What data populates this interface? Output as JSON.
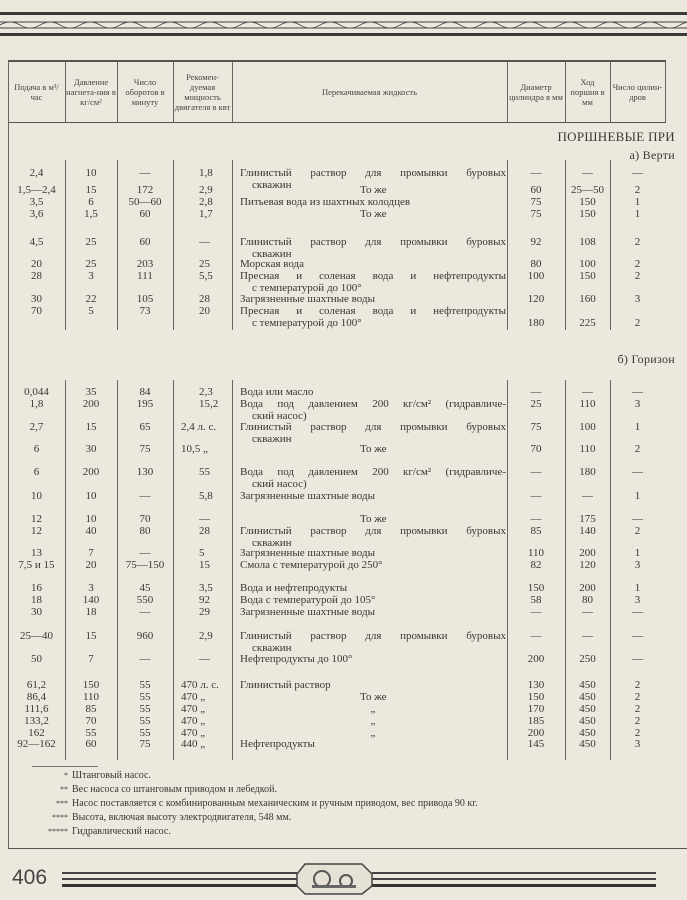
{
  "headers": [
    "Подача в м³/час",
    "Давление нагнета-ния в кг/см²",
    "Число оборотов в минуту",
    "Рекомен-дуемая мощность двигателя в квт",
    "Перекачиваемая жидкость",
    "Диаметр цилиндра в мм",
    "Ход поршня в мм",
    "Число цилин-дров"
  ],
  "section_title": "ПОРШНЕВЫЕ ПРИ",
  "subsections": [
    {
      "title": "а) Верти",
      "rows": [
        [
          "2,4",
          "10",
          "—",
          "1,8",
          [
            "Глинистый раствор для промывки буровых",
            "скважин"
          ],
          "—",
          "—",
          "—"
        ],
        [
          "1,5—2,4",
          "15",
          "172",
          "2,9",
          [
            "=То же"
          ],
          "60",
          "25—50",
          "2"
        ],
        [
          "3,5",
          "6",
          "50—60",
          "2,8",
          [
            "Питьевая вода из шахтных колодцев"
          ],
          "75",
          "150",
          "1"
        ],
        [
          "3,6",
          "1,5",
          "60",
          "1,7",
          [
            "=То же"
          ],
          "75",
          "150",
          "1"
        ],
        [
          "4,5",
          "25",
          "60",
          "—",
          [
            "Глинистый раствор для промывки буровых",
            "скважин"
          ],
          "92",
          "108",
          "2"
        ],
        [
          "20",
          "25",
          "203",
          "25",
          [
            "Морская вода"
          ],
          "80",
          "100",
          "2"
        ],
        [
          "28",
          "3",
          "111",
          "5,5",
          [
            "Пресная и соленая вода и нефтепродукты",
            "с температурой до 100°"
          ],
          "100",
          "150",
          "2"
        ],
        [
          "30",
          "22",
          "105",
          "28",
          [
            "Загрязненные шахтные воды"
          ],
          "120",
          "160",
          "3"
        ],
        [
          "70",
          "5",
          "73",
          "20",
          [
            "Пресная и соленая вода и нефтепродукты",
            "с температурой до 100°"
          ],
          "180",
          "225",
          "2"
        ]
      ]
    },
    {
      "title": "б) Горизон",
      "rows": [
        [
          "0,044",
          "35",
          "84",
          "2,3",
          [
            "Вода или масло"
          ],
          "—",
          "—",
          "—"
        ],
        [
          "1,8",
          "200",
          "195",
          "15,2",
          [
            "Вода под давлением 200 кг/см² (гидравличе-",
            "ский насос)"
          ],
          "25",
          "110",
          "3"
        ],
        [
          "2,7",
          "15",
          "65",
          "2,4 л. с.",
          [
            "Глинистый раствор для промывки буровых",
            "скважин"
          ],
          "75",
          "100",
          "1"
        ],
        [
          "6",
          "30",
          "75",
          "10,5 „",
          [
            "=То же"
          ],
          "70",
          "110",
          "2"
        ],
        [
          "6",
          "200",
          "130",
          "55",
          [
            "Вода под давлением 200 кг/см² (гидравличе-",
            "ский насос)"
          ],
          "—",
          "180",
          "—"
        ],
        [
          "10",
          "10",
          "—",
          "5,8",
          [
            "Загрязненные шахтные воды"
          ],
          "—",
          "—",
          "1"
        ],
        [
          "12",
          "10",
          "70",
          "—",
          [
            "=То же"
          ],
          "—",
          "175",
          "—"
        ],
        [
          "12",
          "40",
          "80",
          "28",
          [
            "Глинистый раствор для промывки буровых",
            "скважин"
          ],
          "85",
          "140",
          "2"
        ],
        [
          "13",
          "7",
          "—",
          "5",
          [
            "Загрязненные шахтные воды"
          ],
          "110",
          "200",
          "1"
        ],
        [
          "7,5 и 15",
          "20",
          "75—150",
          "15",
          [
            "Смола с температурой до 250°"
          ],
          "82",
          "120",
          "3"
        ],
        [
          "16",
          "3",
          "45",
          "3,5",
          [
            "Вода и нефтепродукты"
          ],
          "150",
          "200",
          "1"
        ],
        [
          "18",
          "140",
          "550",
          "92",
          [
            "Вода с температурой до 105°"
          ],
          "58",
          "80",
          "3"
        ],
        [
          "30",
          "18",
          "—",
          "29",
          [
            "Загрязненные шахтные воды"
          ],
          "—",
          "—",
          "—"
        ],
        [
          "25—40",
          "15",
          "960",
          "2,9",
          [
            "Глинистый раствор для промывки буровых",
            "скважин"
          ],
          "—",
          "—",
          "—"
        ],
        [
          "50",
          "7",
          "—",
          "—",
          [
            "Нефтепродукты до 100°"
          ],
          "200",
          "250",
          "—"
        ],
        [
          "61,2",
          "150",
          "55",
          "470 л. с.",
          [
            "Глинистый раствор"
          ],
          "130",
          "450",
          "2"
        ],
        [
          "86,4",
          "110",
          "55",
          "470 „",
          [
            "=То же"
          ],
          "150",
          "450",
          "2"
        ],
        [
          "111,6",
          "85",
          "55",
          "470 „",
          [
            "=„"
          ],
          "170",
          "450",
          "2"
        ],
        [
          "133,2",
          "70",
          "55",
          "470 „",
          [
            "=„"
          ],
          "185",
          "450",
          "2"
        ],
        [
          "162",
          "55",
          "55",
          "470 „",
          [
            "=„"
          ],
          "200",
          "450",
          "2"
        ],
        [
          "92—162",
          "60",
          "75",
          "440 „",
          [
            "Нефтепродукты"
          ],
          "145",
          "450",
          "3"
        ]
      ]
    }
  ],
  "footnotes": [
    {
      "mark": "*",
      "text": "Штанговый насос."
    },
    {
      "mark": "**",
      "text": "Вес насоса со штанговым приводом и лебедкой."
    },
    {
      "mark": "***",
      "text": "Насос поставляется с комбинированным механическим и ручным приводом, вес привода 90 кг."
    },
    {
      "mark": "****",
      "text": "Высота, включая высоту электродвигателя, 548 мм."
    },
    {
      "mark": "*****",
      "text": "Гидравлический насос."
    }
  ],
  "page_number": "406"
}
